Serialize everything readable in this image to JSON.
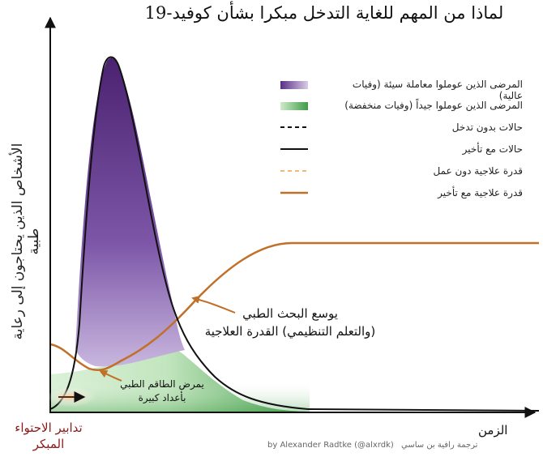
{
  "title": "لماذا من المهم للغاية التدخل مبكرا بشأن كوفيد-19",
  "y_axis_label": "الأشخاص الذين يحتاجون إلى رعاية طبية",
  "x_axis_label": "الزمن",
  "early_containment": {
    "line1": "تدابير الاحتواء",
    "line2": "المبكر"
  },
  "legend": [
    {
      "label": "المرضى الذين عوملوا معاملة سيئة (وفيات عالية)",
      "swatch": "purple-fill",
      "color": "#6a3c93"
    },
    {
      "label": "المرضى الذين عوملوا جيداً (وفيات منخفضة)",
      "swatch": "green-fill",
      "color": "#3f9c45"
    },
    {
      "label": "حالات بدون تدخل",
      "swatch": "black-dashed",
      "color": "#111111"
    },
    {
      "label": "حالات مع تأخير",
      "swatch": "black-solid",
      "color": "#111111"
    },
    {
      "label": "قدرة علاجية دون عمل",
      "swatch": "orange-dashed",
      "color": "#f0b878"
    },
    {
      "label": "قدرة علاجية مع تأخير",
      "swatch": "orange-solid",
      "color": "#c07028"
    }
  ],
  "annotations": {
    "research": {
      "line1": "يوسع البحث الطبي",
      "line2": "(والتعلم التنظيمي) القدرة العلاجية"
    },
    "staff": {
      "line1": "يمرض الطاقم الطبي",
      "line2": "بأعداد كبيرة"
    }
  },
  "credit": {
    "author": "by Alexander Radtke (@alxrdk)",
    "translator": "ترجمة رافية بن ساسي"
  }
}
